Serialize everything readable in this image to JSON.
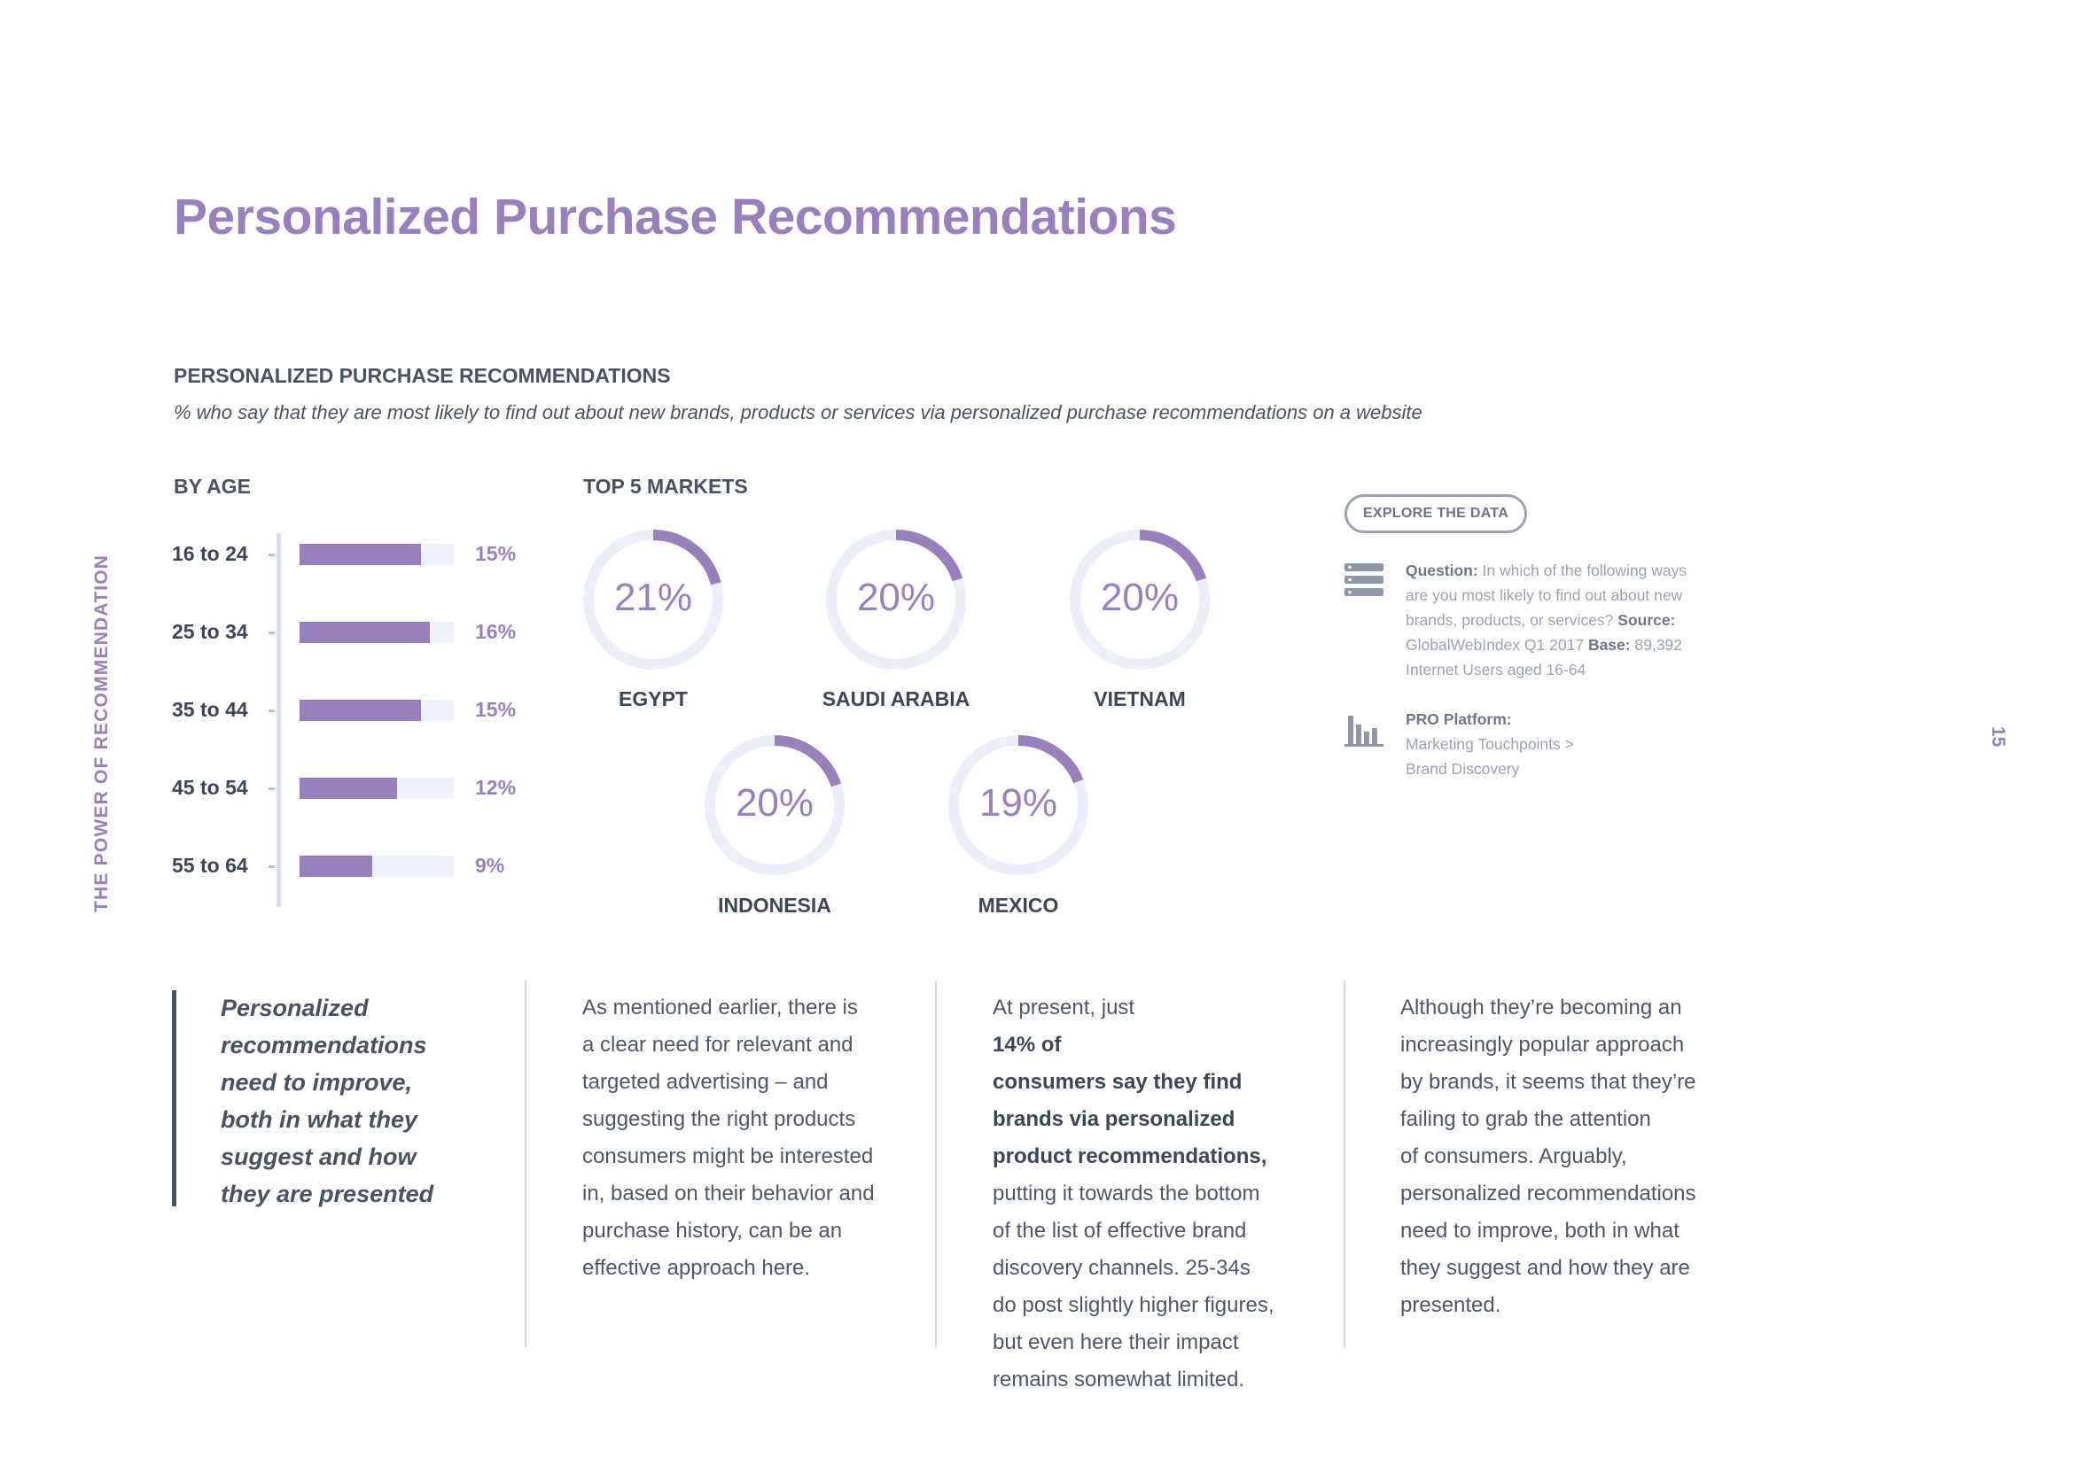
{
  "page": {
    "title": "Personalized Purchase Recommendations",
    "side_label": "THE POWER OF RECOMMENDATION",
    "page_number": "15"
  },
  "section": {
    "heading": "PERSONALIZED PURCHASE RECOMMENDATIONS",
    "subtitle": "% who say that they are most likely to find out about new brands, products or services via personalized purchase recommendations on a website"
  },
  "colors": {
    "accent": "#9880bd",
    "track": "#eef0fa",
    "ring_track": "#eceef8",
    "text_dark": "#3d4656"
  },
  "chart_data": [
    {
      "type": "bar",
      "orientation": "horizontal",
      "title": "BY AGE",
      "categories": [
        "16 to 24",
        "25 to 34",
        "35 to 44",
        "45 to 54",
        "55 to 64"
      ],
      "values": [
        15,
        16,
        15,
        12,
        9
      ],
      "value_labels": [
        "15%",
        "16%",
        "15%",
        "12%",
        "9%"
      ],
      "xlim": [
        0,
        19
      ],
      "unit": "%"
    },
    {
      "type": "pie",
      "style": "donut-gauge",
      "title": "TOP 5 MARKETS",
      "categories": [
        "EGYPT",
        "SAUDI ARABIA",
        "VIETNAM",
        "INDONESIA",
        "MEXICO"
      ],
      "values": [
        21,
        20,
        20,
        20,
        19
      ],
      "value_labels": [
        "21%",
        "20%",
        "20%",
        "20%",
        "19%"
      ],
      "max": 100,
      "unit": "%"
    }
  ],
  "explore": {
    "button_label": "EXPLORE THE DATA",
    "question_lines": [
      {
        "bold": "Question:",
        "text": " In which of the following ways"
      },
      {
        "bold": "",
        "text": "are you most likely to find out about new"
      },
      {
        "bold": "",
        "text": "brands, products, or services? ",
        "bold_after": "Source:"
      },
      {
        "bold": "",
        "text": "GlobalWebIndex Q1 2017  ",
        "bold_after": "Base:",
        "text_after": " 89,392"
      },
      {
        "bold": "",
        "text": "Internet Users aged 16-64"
      }
    ],
    "pro_label": "PRO Platform:",
    "pro_lines": [
      "Marketing Touchpoints >",
      "Brand Discovery"
    ]
  },
  "quote": {
    "lines": [
      "Personalized",
      "recommendations",
      "need to improve,",
      "both in what they",
      "suggest and how",
      "they are presented"
    ]
  },
  "body_columns": [
    {
      "lines": [
        {
          "text": "As mentioned earlier, there is",
          "bold": false
        },
        {
          "text": "a clear need for relevant and",
          "bold": false
        },
        {
          "text": "targeted advertising – and",
          "bold": false
        },
        {
          "text": "suggesting the right products",
          "bold": false
        },
        {
          "text": "consumers might be interested",
          "bold": false
        },
        {
          "text": "in, based on their behavior and",
          "bold": false
        },
        {
          "text": "purchase history, can be an",
          "bold": false
        },
        {
          "text": "effective approach here.",
          "bold": false
        }
      ]
    },
    {
      "lines": [
        {
          "text": "At present, just ",
          "bold": false,
          "strong": "14% of"
        },
        {
          "text": "consumers say they find",
          "bold": true
        },
        {
          "text": "brands via personalized",
          "bold": true
        },
        {
          "text": "product recommendations,",
          "bold": true
        },
        {
          "text": "putting it towards the bottom",
          "bold": false
        },
        {
          "text": "of the list of effective brand",
          "bold": false
        },
        {
          "text": "discovery channels. 25-34s",
          "bold": false
        },
        {
          "text": "do post slightly higher figures,",
          "bold": false
        },
        {
          "text": "but even here their impact",
          "bold": false
        },
        {
          "text": "remains somewhat limited.",
          "bold": false
        }
      ]
    },
    {
      "lines": [
        {
          "text": "Although they’re becoming an",
          "bold": false
        },
        {
          "text": "increasingly popular approach",
          "bold": false
        },
        {
          "text": "by brands, it seems that they’re",
          "bold": false
        },
        {
          "text": "failing to grab the attention",
          "bold": false
        },
        {
          "text": "of consumers. Arguably,",
          "bold": false
        },
        {
          "text": "personalized recommendations",
          "bold": false
        },
        {
          "text": "need to improve, both in what",
          "bold": false
        },
        {
          "text": "they suggest and how they are",
          "bold": false
        },
        {
          "text": "presented.",
          "bold": false
        }
      ]
    }
  ]
}
